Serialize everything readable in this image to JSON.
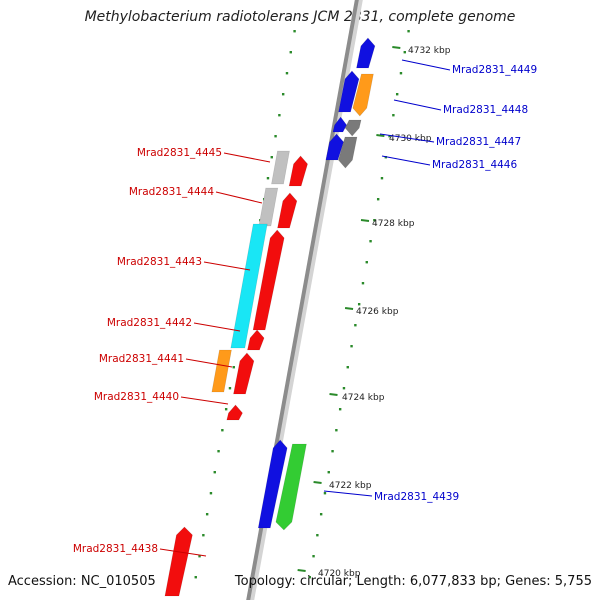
{
  "title": "Methylobacterium radiotolerans JCM 2831, complete genome",
  "footer": {
    "accession": "Accession: NC_010505",
    "summary": "Topology: circular; Length: 6,077,833 bp; Genes: 5,755"
  },
  "colors": {
    "backbone": "#8c8c8c",
    "dots": "#2a8a2a",
    "forward_label": "#0000cc",
    "reverse_label": "#cc0000",
    "red": "#f20d0d",
    "blue": "#1010e0",
    "orange": "#ff9a1a",
    "gray": "#7a7a7a",
    "lightgray": "#c0c0c0",
    "cyan": "#19e6f5",
    "green": "#33cc33"
  },
  "ticks": [
    {
      "kbp": 4732,
      "label": "4732 kbp"
    },
    {
      "kbp": 4730,
      "label": "4730 kbp"
    },
    {
      "kbp": 4728,
      "label": "4728 kbp"
    },
    {
      "kbp": 4726,
      "label": "4726 kbp"
    },
    {
      "kbp": 4724,
      "label": "4724 kbp"
    },
    {
      "kbp": 4722,
      "label": "4722 kbp"
    },
    {
      "kbp": 4720,
      "label": "4720 kbp"
    }
  ],
  "forward_genes": [
    {
      "label": "Mrad2831_4449",
      "color": "blue"
    },
    {
      "label": "Mrad2831_4448",
      "color": "orange"
    },
    {
      "label": "Mrad2831_4447",
      "color": "gray"
    },
    {
      "label": "Mrad2831_4446",
      "color": "gray"
    },
    {
      "label": "Mrad2831_4439",
      "color": "green"
    }
  ],
  "reverse_genes": [
    {
      "label": "Mrad2831_4445",
      "color": "lightgray"
    },
    {
      "label": "Mrad2831_4444",
      "color": "lightgray"
    },
    {
      "label": "Mrad2831_4443",
      "color": "cyan"
    },
    {
      "label": "Mrad2831_4442",
      "color": "cyan"
    },
    {
      "label": "Mrad2831_4441",
      "color": "orange"
    },
    {
      "label": "Mrad2831_4440",
      "color": "red"
    },
    {
      "label": "Mrad2831_4438",
      "color": "red"
    }
  ]
}
